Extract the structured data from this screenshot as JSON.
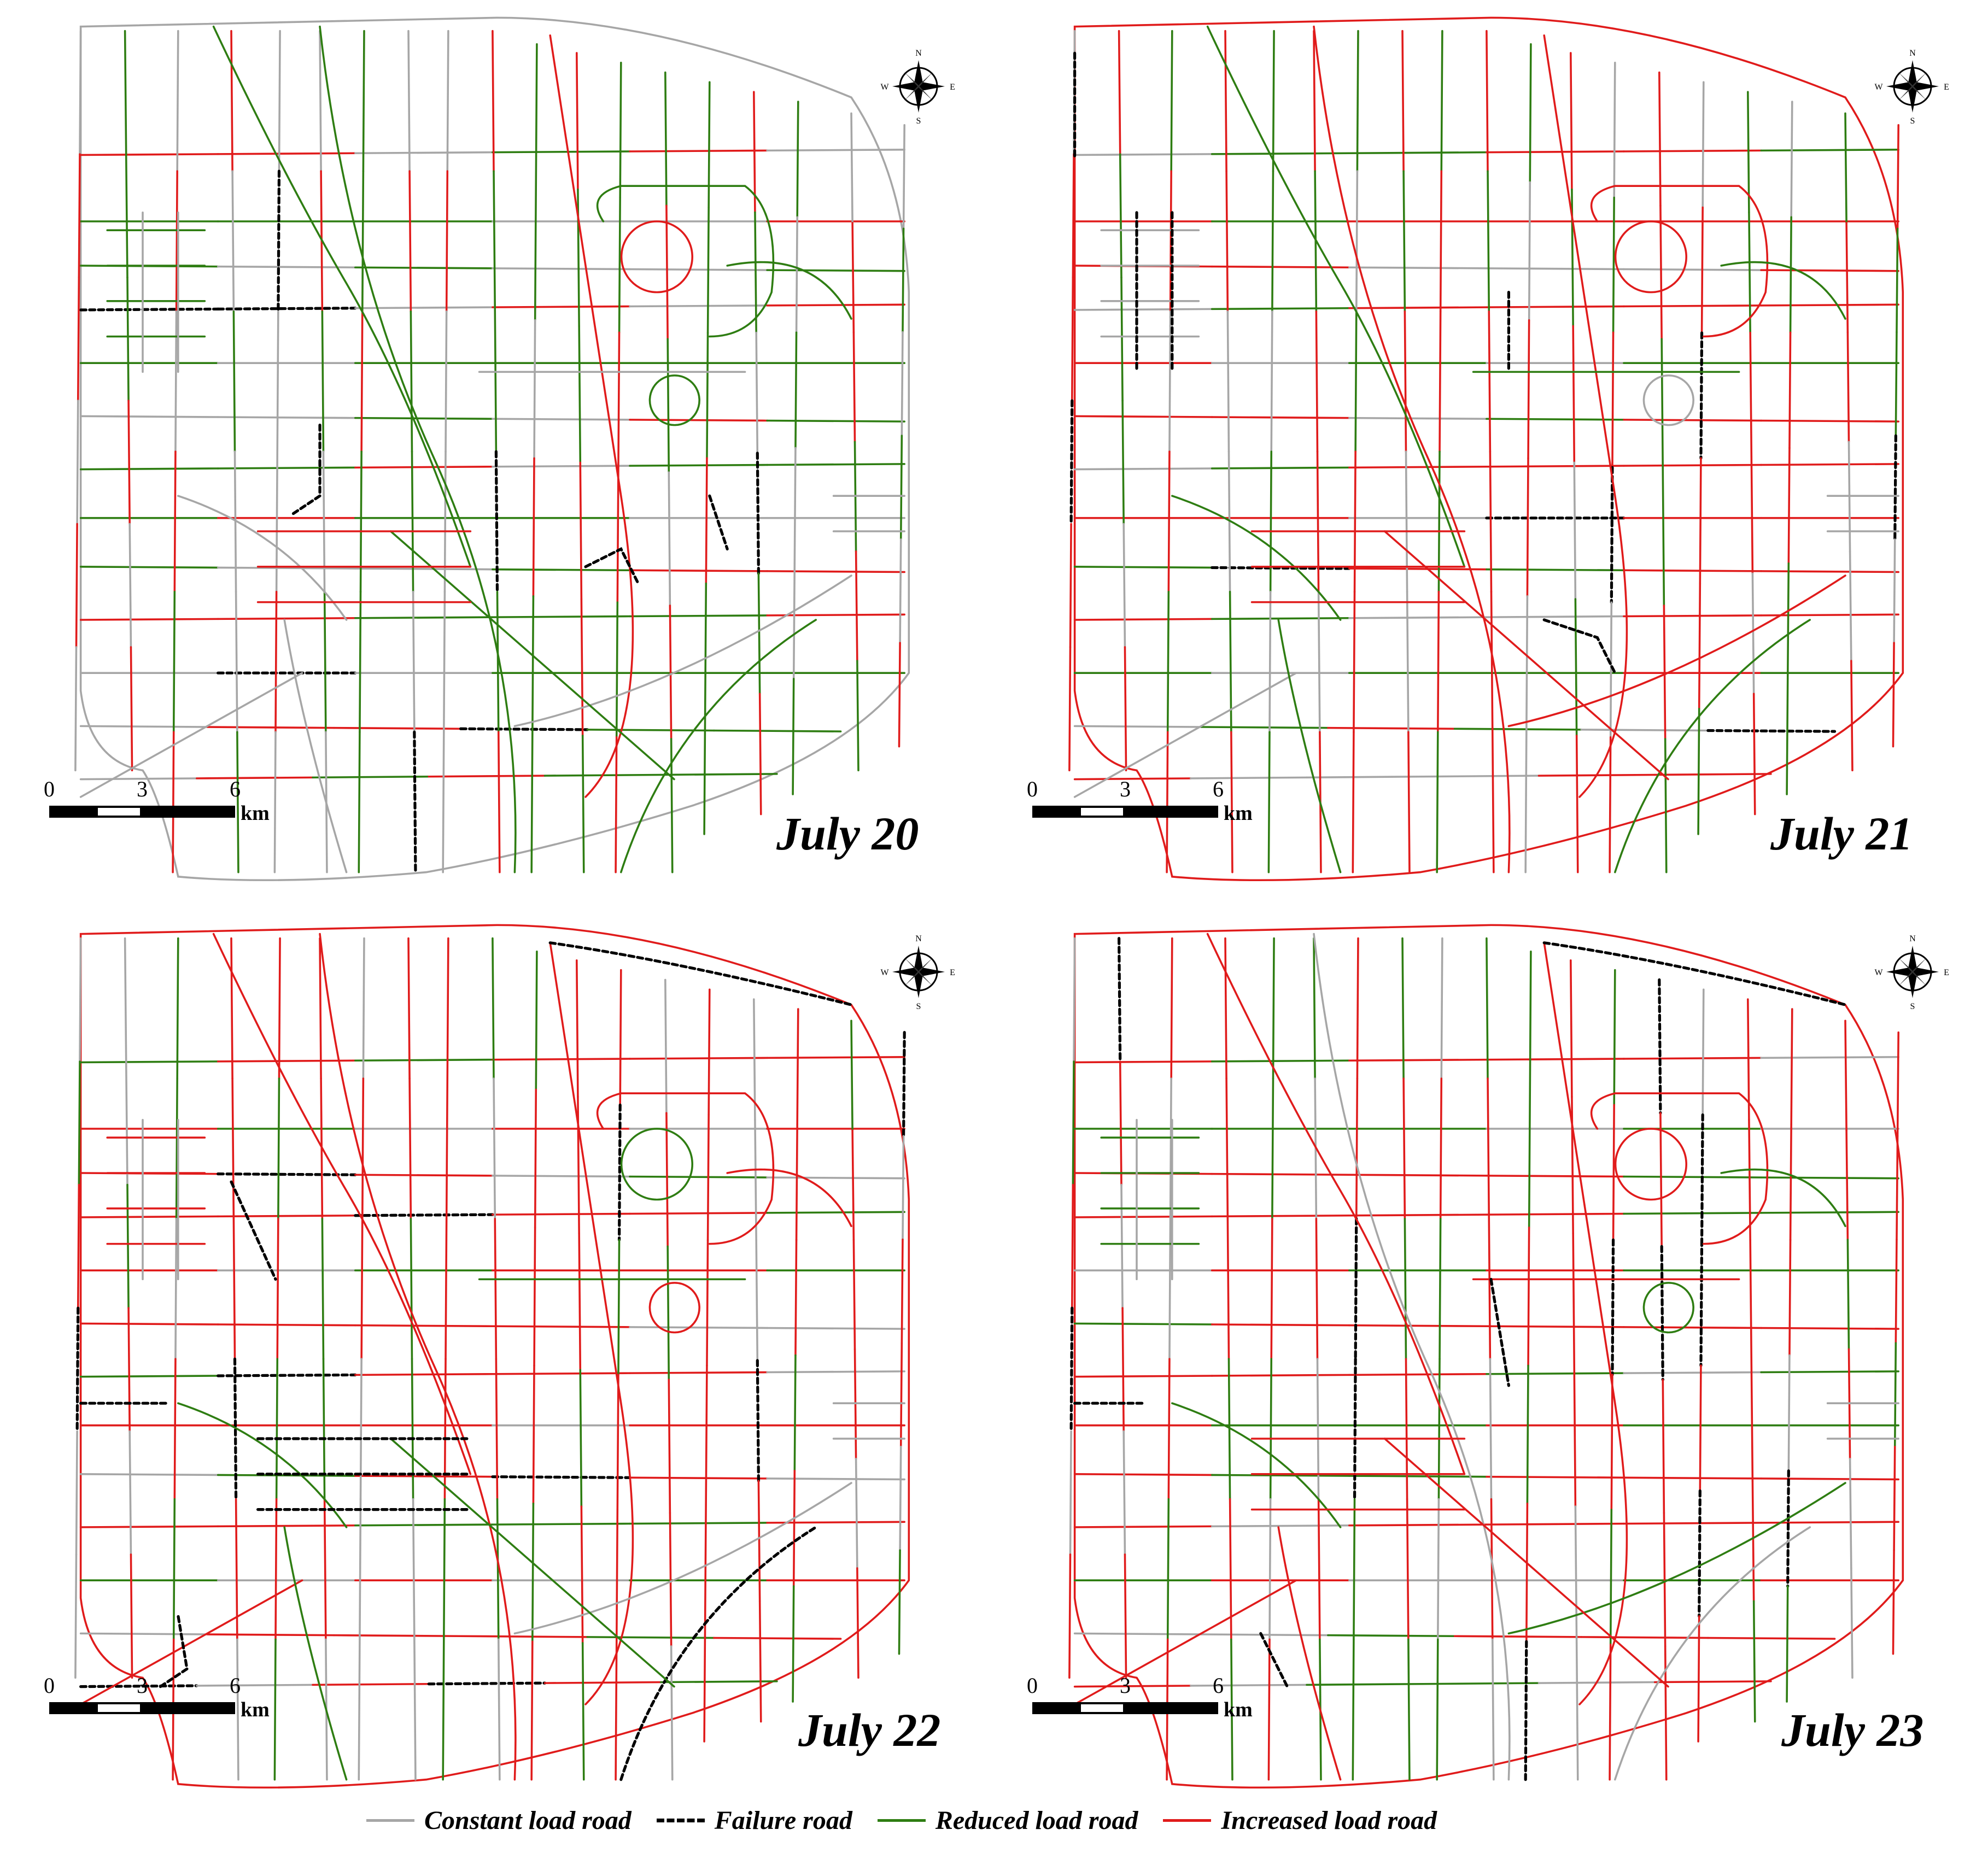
{
  "maps": [
    {
      "label": "July 20",
      "scale": {
        "ticks": [
          "0",
          "3",
          "6"
        ],
        "unit": "km"
      }
    },
    {
      "label": "July 21",
      "scale": {
        "ticks": [
          "0",
          "3",
          "6"
        ],
        "unit": "km"
      }
    },
    {
      "label": "July 22",
      "scale": {
        "ticks": [
          "0",
          "3",
          "6"
        ],
        "unit": "km"
      }
    },
    {
      "label": "July 23",
      "scale": {
        "ticks": [
          "0",
          "3",
          "6"
        ],
        "unit": "km"
      }
    }
  ],
  "compass": {
    "n": "N",
    "s": "S",
    "e": "E",
    "w": "W",
    "icon": "compass-rose-icon"
  },
  "legend": [
    {
      "label": "Constant load road",
      "color": "#a6a6a6",
      "style": "solid"
    },
    {
      "label": "Failure road",
      "color": "#000000",
      "style": "dashed"
    },
    {
      "label": "Reduced load road",
      "color": "#2e7d12",
      "style": "solid"
    },
    {
      "label": "Increased load road",
      "color": "#e01b1b",
      "style": "solid"
    }
  ]
}
